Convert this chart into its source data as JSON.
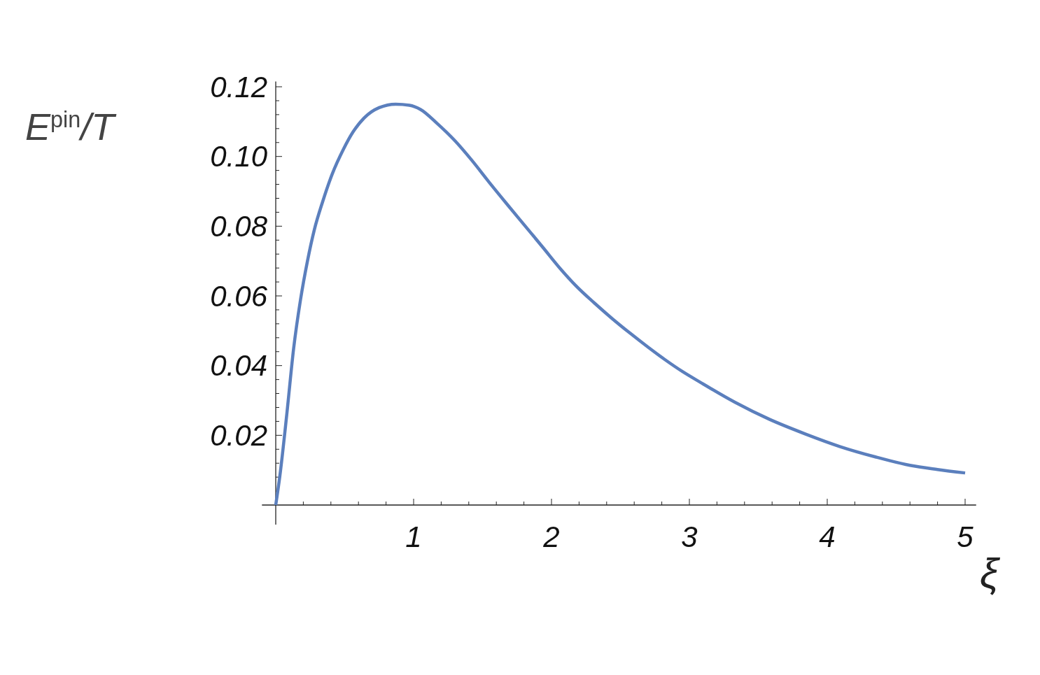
{
  "chart_data": {
    "type": "line",
    "xlabel": "ξ",
    "ylabel": "E$^{pin}$/T",
    "xlim": [
      -0.1,
      5.08
    ],
    "ylim": [
      -0.0056,
      0.1215
    ],
    "xticks": [
      {
        "value": 0.2,
        "label": null
      },
      {
        "value": 0.4,
        "label": null
      },
      {
        "value": 0.6,
        "label": null
      },
      {
        "value": 0.8,
        "label": null
      },
      1,
      {
        "value": 1.2,
        "label": null
      },
      {
        "value": 1.4,
        "label": null
      },
      {
        "value": 1.6,
        "label": null
      },
      {
        "value": 1.8,
        "label": null
      },
      2,
      {
        "value": 2.2,
        "label": null
      },
      {
        "value": 2.4,
        "label": null
      },
      {
        "value": 2.6,
        "label": null
      },
      {
        "value": 2.8,
        "label": null
      },
      3,
      {
        "value": 3.2,
        "label": null
      },
      {
        "value": 3.4,
        "label": null
      },
      {
        "value": 3.6,
        "label": null
      },
      {
        "value": 3.8,
        "label": null
      },
      4,
      {
        "value": 4.2,
        "label": null
      },
      {
        "value": 4.4,
        "label": null
      },
      {
        "value": 4.6,
        "label": null
      },
      {
        "value": 4.8,
        "label": null
      },
      5
    ],
    "yticks": [
      {
        "value": 0.004,
        "label": null
      },
      {
        "value": 0.008,
        "label": null
      },
      {
        "value": 0.012,
        "label": null
      },
      {
        "value": 0.016,
        "label": null
      },
      0.02,
      {
        "value": 0.024,
        "label": null
      },
      {
        "value": 0.028,
        "label": null
      },
      {
        "value": 0.032,
        "label": null
      },
      {
        "value": 0.036,
        "label": null
      },
      0.04,
      {
        "value": 0.044,
        "label": null
      },
      {
        "value": 0.048,
        "label": null
      },
      {
        "value": 0.052,
        "label": null
      },
      {
        "value": 0.056,
        "label": null
      },
      0.06,
      {
        "value": 0.064,
        "label": null
      },
      {
        "value": 0.068,
        "label": null
      },
      {
        "value": 0.072,
        "label": null
      },
      {
        "value": 0.076,
        "label": null
      },
      0.08,
      {
        "value": 0.084,
        "label": null
      },
      {
        "value": 0.088,
        "label": null
      },
      {
        "value": 0.092,
        "label": null
      },
      {
        "value": 0.096,
        "label": null
      },
      {
        "value": 0.1,
        "label": "0.10"
      },
      {
        "value": 0.104,
        "label": null
      },
      {
        "value": 0.108,
        "label": null
      },
      {
        "value": 0.112,
        "label": null
      },
      {
        "value": 0.116,
        "label": null
      },
      0.12
    ],
    "series": [
      {
        "color": "#5b7fbd",
        "x": [
          0,
          0.03,
          0.08,
          0.13,
          0.18,
          0.23,
          0.28,
          0.34,
          0.41,
          0.49,
          0.56,
          0.64,
          0.75,
          0.87,
          0.97,
          1.05,
          1.17,
          1.3,
          1.42,
          1.55,
          1.68,
          1.81,
          1.94,
          2.06,
          2.18,
          2.31,
          2.44,
          2.57,
          2.7,
          2.82,
          2.95,
          3.08,
          3.33,
          3.58,
          3.84,
          4.09,
          4.35,
          4.6,
          4.8,
          5.0
        ],
        "values": [
          0,
          0.0084,
          0.026,
          0.045,
          0.059,
          0.07,
          0.079,
          0.087,
          0.095,
          0.102,
          0.107,
          0.111,
          0.114,
          0.115,
          0.1147,
          0.1135,
          0.1095,
          0.1045,
          0.099,
          0.0925,
          0.0862,
          0.08,
          0.0738,
          0.068,
          0.0628,
          0.058,
          0.0535,
          0.0493,
          0.0453,
          0.0418,
          0.0383,
          0.0352,
          0.0295,
          0.0246,
          0.0204,
          0.0168,
          0.0138,
          0.0114,
          0.0102,
          0.0092
        ]
      }
    ],
    "grid": false,
    "marker": "none",
    "line_style": "solid"
  }
}
